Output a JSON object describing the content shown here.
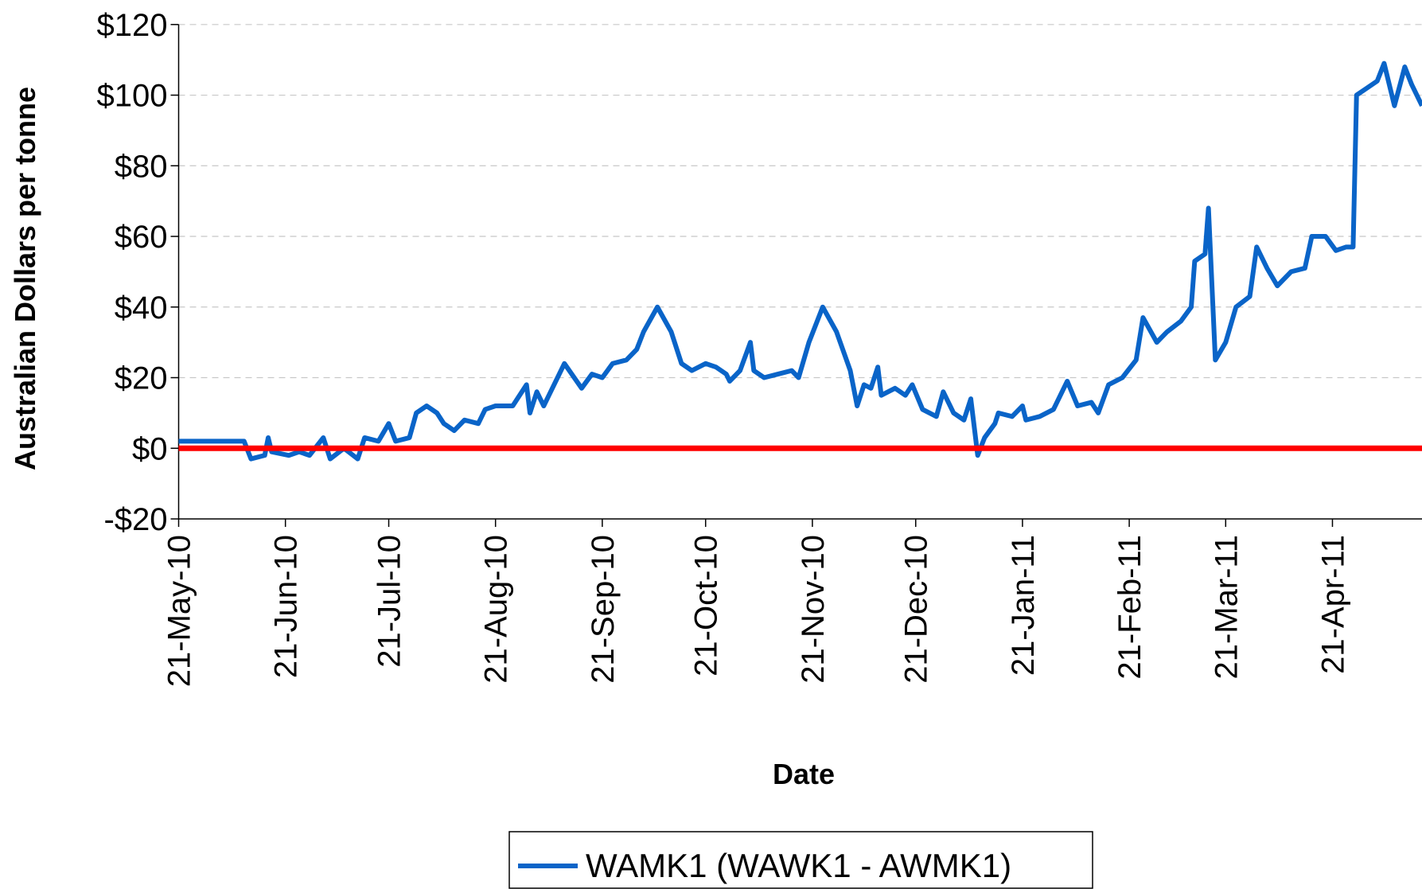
{
  "chart_data": {
    "type": "line",
    "x_label": "Date",
    "y_label": "Australian Dollars per tonne",
    "xlim": [
      "2010-05-21",
      "2011-05-17"
    ],
    "xticks": [
      {
        "value": "2010-05-21",
        "label": "21-May-10"
      },
      {
        "value": "2010-06-21",
        "label": "21-Jun-10"
      },
      {
        "value": "2010-07-21",
        "label": "21-Jul-10"
      },
      {
        "value": "2010-08-21",
        "label": "21-Aug-10"
      },
      {
        "value": "2010-09-21",
        "label": "21-Sep-10"
      },
      {
        "value": "2010-10-21",
        "label": "21-Oct-10"
      },
      {
        "value": "2010-11-21",
        "label": "21-Nov-10"
      },
      {
        "value": "2010-12-21",
        "label": "21-Dec-10"
      },
      {
        "value": "2011-01-21",
        "label": "21-Jan-11"
      },
      {
        "value": "2011-02-21",
        "label": "21-Feb-11"
      },
      {
        "value": "2011-03-21",
        "label": "21-Mar-11"
      },
      {
        "value": "2011-04-21",
        "label": "21-Apr-11"
      }
    ],
    "ylim": [
      -20,
      120
    ],
    "yticks": [
      {
        "value": -20,
        "label": "-$20"
      },
      {
        "value": 0,
        "label": "$0"
      },
      {
        "value": 20,
        "label": "$20"
      },
      {
        "value": 40,
        "label": "$40"
      },
      {
        "value": 60,
        "label": "$60"
      },
      {
        "value": 80,
        "label": "$80"
      },
      {
        "value": 100,
        "label": "$100"
      },
      {
        "value": 120,
        "label": "$120"
      }
    ],
    "grid": true,
    "legend": "bottom",
    "reference_line": {
      "value": 0,
      "color": "#ff0000"
    },
    "x": [
      "2010-05-21",
      "2010-06-01",
      "2010-06-09",
      "2010-06-11",
      "2010-06-15",
      "2010-06-16",
      "2010-06-17",
      "2010-06-22",
      "2010-06-25",
      "2010-06-28",
      "2010-07-02",
      "2010-07-04",
      "2010-07-08",
      "2010-07-12",
      "2010-07-14",
      "2010-07-18",
      "2010-07-21",
      "2010-07-23",
      "2010-07-27",
      "2010-07-29",
      "2010-08-01",
      "2010-08-04",
      "2010-08-06",
      "2010-08-09",
      "2010-08-12",
      "2010-08-16",
      "2010-08-18",
      "2010-08-21",
      "2010-08-26",
      "2010-08-30",
      "2010-08-31",
      "2010-09-02",
      "2010-09-04",
      "2010-09-10",
      "2010-09-15",
      "2010-09-18",
      "2010-09-21",
      "2010-09-24",
      "2010-09-28",
      "2010-10-01",
      "2010-10-03",
      "2010-10-07",
      "2010-10-11",
      "2010-10-14",
      "2010-10-17",
      "2010-10-21",
      "2010-10-24",
      "2010-10-27",
      "2010-10-28",
      "2010-10-31",
      "2010-11-03",
      "2010-11-04",
      "2010-11-07",
      "2010-11-11",
      "2010-11-15",
      "2010-11-17",
      "2010-11-20",
      "2010-11-24",
      "2010-11-28",
      "2010-12-02",
      "2010-12-04",
      "2010-12-06",
      "2010-12-08",
      "2010-12-10",
      "2010-12-11",
      "2010-12-15",
      "2010-12-18",
      "2010-12-20",
      "2010-12-23",
      "2010-12-27",
      "2010-12-29",
      "2011-01-01",
      "2011-01-04",
      "2011-01-06",
      "2011-01-08",
      "2011-01-10",
      "2011-01-13",
      "2011-01-14",
      "2011-01-18",
      "2011-01-21",
      "2011-01-22",
      "2011-01-26",
      "2011-01-30",
      "2011-02-03",
      "2011-02-06",
      "2011-02-10",
      "2011-02-12",
      "2011-02-15",
      "2011-02-19",
      "2011-02-23",
      "2011-02-25",
      "2011-03-01",
      "2011-03-04",
      "2011-03-08",
      "2011-03-11",
      "2011-03-12",
      "2011-03-15",
      "2011-03-16",
      "2011-03-18",
      "2011-03-21",
      "2011-03-24",
      "2011-03-28",
      "2011-03-30",
      "2011-04-02",
      "2011-04-05",
      "2011-04-09",
      "2011-04-13",
      "2011-04-15",
      "2011-04-19",
      "2011-04-22",
      "2011-04-25",
      "2011-04-27",
      "2011-04-28",
      "2011-05-01",
      "2011-05-04",
      "2011-05-06",
      "2011-05-09",
      "2011-05-12",
      "2011-05-14",
      "2011-05-17"
    ],
    "series": [
      {
        "name": "WAMK1 (WAWK1 - AWMK1)",
        "color": "#0a64c8",
        "values": [
          2,
          2,
          2,
          -3,
          -2,
          3,
          -1,
          -2,
          -1,
          -2,
          3,
          -3,
          0,
          -3,
          3,
          2,
          7,
          2,
          3,
          10,
          12,
          10,
          7,
          5,
          8,
          7,
          11,
          12,
          12,
          18,
          10,
          16,
          12,
          24,
          17,
          21,
          20,
          24,
          25,
          28,
          33,
          40,
          33,
          24,
          22,
          24,
          23,
          21,
          19,
          22,
          30,
          22,
          20,
          21,
          22,
          20,
          30,
          40,
          33,
          22,
          12,
          18,
          17,
          23,
          15,
          17,
          15,
          18,
          11,
          9,
          16,
          10,
          8,
          14,
          -2,
          3,
          7,
          10,
          9,
          12,
          8,
          9,
          11,
          19,
          12,
          13,
          10,
          18,
          20,
          25,
          37,
          30,
          33,
          36,
          40,
          53,
          55,
          68,
          25,
          30,
          40,
          43,
          57,
          51,
          46,
          50,
          51,
          60,
          60,
          56,
          57,
          57,
          100,
          102,
          104,
          109,
          97,
          108,
          103,
          97
        ]
      }
    ]
  }
}
